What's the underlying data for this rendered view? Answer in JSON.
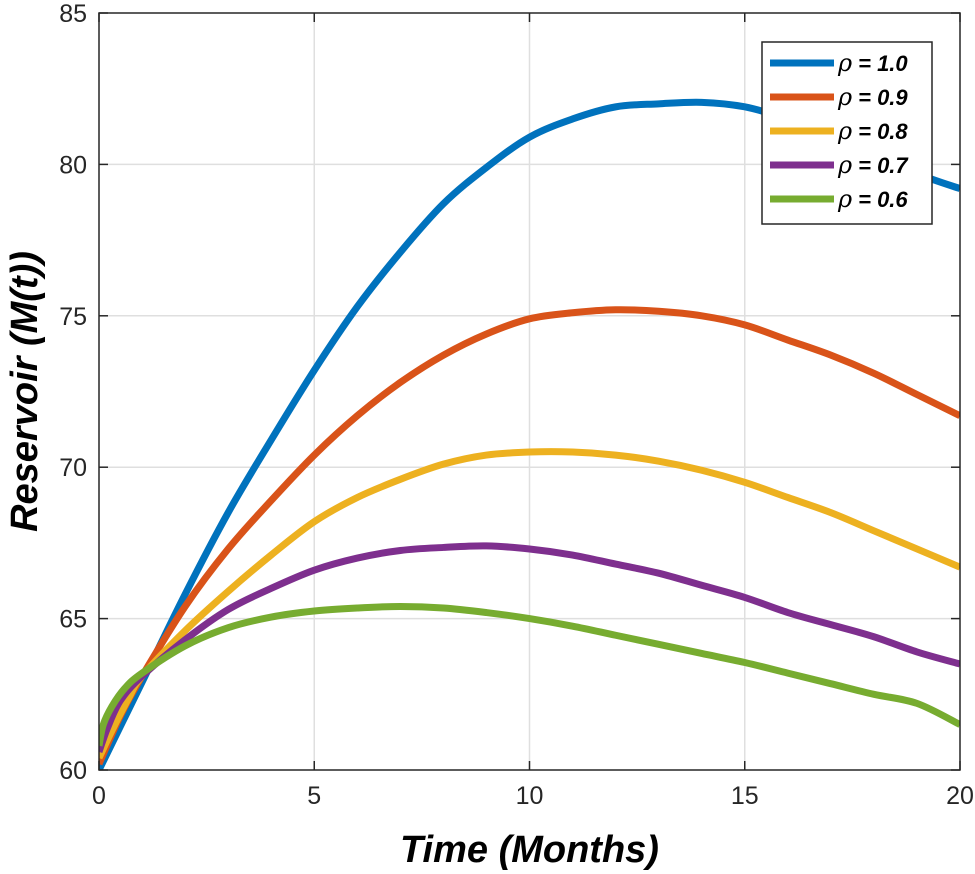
{
  "chart_data": {
    "type": "line",
    "title": "",
    "xlabel": "Time (Months)",
    "ylabel": "Reservoir (M(t))",
    "xlim": [
      0,
      20
    ],
    "ylim": [
      60,
      85
    ],
    "xticks": [
      0,
      5,
      10,
      15,
      20
    ],
    "yticks": [
      60,
      65,
      70,
      75,
      80,
      85
    ],
    "grid": true,
    "legend_position": "top-right",
    "legend_symbol": "ρ",
    "series": [
      {
        "name": "= 1.0",
        "color": "#0072BD",
        "x": [
          0,
          1,
          2,
          3,
          4,
          5,
          6,
          7,
          8,
          9,
          10,
          11,
          12,
          13,
          14,
          15,
          16,
          17,
          18,
          19,
          20
        ],
        "values": [
          60.0,
          62.9,
          65.8,
          68.5,
          70.9,
          73.2,
          75.3,
          77.1,
          78.7,
          79.9,
          80.9,
          81.5,
          81.9,
          82.0,
          82.05,
          81.9,
          81.5,
          81.0,
          80.4,
          79.7,
          79.2
        ]
      },
      {
        "name": "= 0.9",
        "color": "#D95319",
        "x": [
          0,
          0.5,
          1,
          2,
          3,
          4,
          5,
          6,
          7,
          8,
          9,
          10,
          11,
          12,
          13,
          14,
          15,
          16,
          17,
          18,
          19,
          20
        ],
        "values": [
          60.2,
          61.8,
          63.1,
          65.4,
          67.3,
          68.9,
          70.4,
          71.7,
          72.8,
          73.7,
          74.4,
          74.9,
          75.1,
          75.2,
          75.15,
          75.0,
          74.7,
          74.2,
          73.7,
          73.1,
          72.4,
          71.7
        ]
      },
      {
        "name": "= 0.8",
        "color": "#EDB120",
        "x": [
          0,
          0.3,
          0.7,
          1,
          2,
          3,
          4,
          5,
          6,
          7,
          8,
          9,
          10,
          11,
          12,
          13,
          14,
          15,
          16,
          17,
          18,
          19,
          20
        ],
        "values": [
          60.4,
          61.3,
          62.4,
          63.1,
          64.6,
          65.9,
          67.1,
          68.2,
          69.0,
          69.6,
          70.1,
          70.4,
          70.5,
          70.5,
          70.4,
          70.2,
          69.9,
          69.5,
          69.0,
          68.5,
          67.9,
          67.3,
          66.7
        ]
      },
      {
        "name": "= 0.7",
        "color": "#7E2F8E",
        "x": [
          0,
          0.2,
          0.5,
          1,
          2,
          3,
          4,
          5,
          6,
          7,
          8,
          9,
          10,
          11,
          12,
          13,
          14,
          15,
          16,
          17,
          18,
          19,
          20
        ],
        "values": [
          60.6,
          61.4,
          62.3,
          63.1,
          64.3,
          65.3,
          66.0,
          66.6,
          67.0,
          67.25,
          67.35,
          67.4,
          67.3,
          67.1,
          66.8,
          66.5,
          66.1,
          65.7,
          65.2,
          64.8,
          64.4,
          63.9,
          63.5
        ]
      },
      {
        "name": "= 0.6",
        "color": "#77AC30",
        "x": [
          0,
          0.1,
          0.3,
          0.6,
          1,
          2,
          3,
          4,
          5,
          6,
          7,
          8,
          9,
          10,
          11,
          12,
          13,
          14,
          15,
          16,
          17,
          18,
          19,
          20
        ],
        "values": [
          60.8,
          61.5,
          62.1,
          62.7,
          63.2,
          64.1,
          64.7,
          65.05,
          65.25,
          65.35,
          65.4,
          65.35,
          65.2,
          65.0,
          64.75,
          64.45,
          64.15,
          63.85,
          63.55,
          63.2,
          62.85,
          62.5,
          62.2,
          61.5
        ]
      }
    ]
  }
}
